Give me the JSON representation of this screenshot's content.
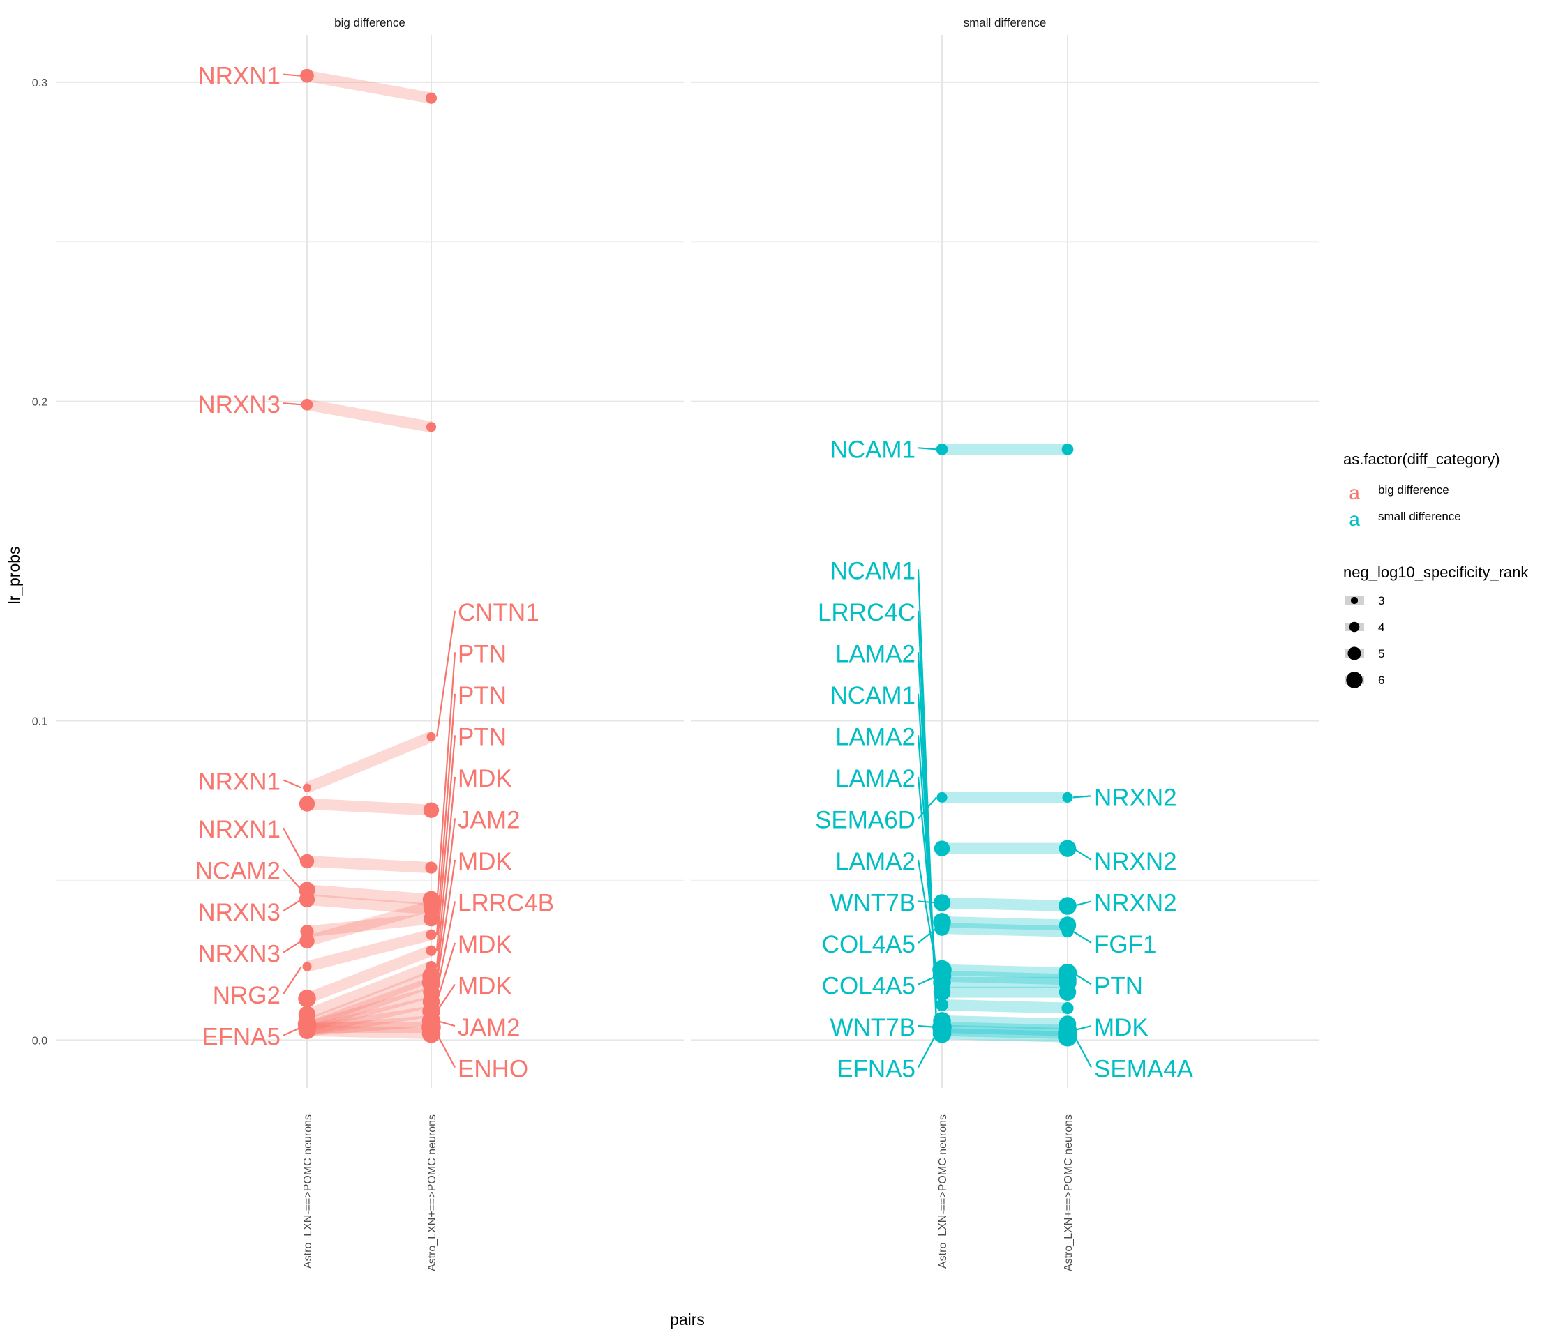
{
  "chart_data": {
    "type": "dumbbell",
    "facets": [
      "big difference",
      "small difference"
    ],
    "xlabel": "pairs",
    "ylabel": "lr_probs",
    "x_categories": [
      "Astro_LXN-==>POMC neurons",
      "Astro_LXN+==>POMC neurons"
    ],
    "yticks": [
      "0.0",
      "0.1",
      "0.2",
      "0.3"
    ],
    "ylim": [
      -0.015,
      0.317
    ],
    "grid": true,
    "legend_position": "right",
    "legend": {
      "color_title": "as.factor(diff_category)",
      "color_entries": [
        {
          "label": "big difference",
          "color": "#F8766D"
        },
        {
          "label": "small difference",
          "color": "#00BFC4"
        }
      ],
      "size_title": "neg_log10_specificity_rank",
      "size_entries": [
        "3",
        "4",
        "5",
        "6"
      ],
      "key_glyph": "a"
    },
    "series": {
      "big difference": {
        "color": "#F8766D",
        "pairs": [
          {
            "left": 0.302,
            "right": 0.295,
            "size_left": 4.5,
            "size_right": 3.8
          },
          {
            "left": 0.199,
            "right": 0.192,
            "size_left": 3.9,
            "size_right": 3.4
          },
          {
            "left": 0.079,
            "right": 0.095,
            "size_left": 3.0,
            "size_right": 3.2
          },
          {
            "left": 0.074,
            "right": 0.072,
            "size_left": 5.0,
            "size_right": 5.0
          },
          {
            "left": 0.056,
            "right": 0.054,
            "size_left": 4.6,
            "size_right": 4.0
          },
          {
            "left": 0.047,
            "right": 0.044,
            "size_left": 5.2,
            "size_right": 5.4
          },
          {
            "left": 0.044,
            "right": 0.041,
            "size_left": 5.0,
            "size_right": 4.8
          },
          {
            "left": 0.034,
            "right": 0.038,
            "size_left": 4.4,
            "size_right": 4.9
          },
          {
            "left": 0.031,
            "right": 0.042,
            "size_left": 4.8,
            "size_right": 5.0
          },
          {
            "left": 0.023,
            "right": 0.033,
            "size_left": 3.2,
            "size_right": 3.6
          },
          {
            "left": 0.013,
            "right": 0.028,
            "size_left": 5.6,
            "size_right": 3.6
          },
          {
            "left": 0.008,
            "right": 0.023,
            "size_left": 5.4,
            "size_right": 3.8
          },
          {
            "left": 0.005,
            "right": 0.02,
            "size_left": 5.8,
            "size_right": 5.6
          },
          {
            "left": 0.004,
            "right": 0.018,
            "size_left": 5.6,
            "size_right": 5.8
          },
          {
            "left": 0.004,
            "right": 0.015,
            "size_left": 5.6,
            "size_right": 5.2
          },
          {
            "left": 0.003,
            "right": 0.012,
            "size_left": 5.4,
            "size_right": 5.4
          },
          {
            "left": 0.003,
            "right": 0.009,
            "size_left": 5.4,
            "size_right": 5.6
          },
          {
            "left": 0.003,
            "right": 0.006,
            "size_left": 5.4,
            "size_right": 5.8
          },
          {
            "left": 0.004,
            "right": 0.004,
            "size_left": 5.4,
            "size_right": 6.0
          },
          {
            "left": 0.003,
            "right": 0.002,
            "size_left": 5.4,
            "size_right": 5.8
          }
        ],
        "left_labels": [
          {
            "text": "NRXN1",
            "y": 0.302,
            "label_y": 0.302
          },
          {
            "text": "NRXN3",
            "y": 0.199,
            "label_y": 0.199
          },
          {
            "text": "NRXN1",
            "y": 0.079,
            "label_y": 0.081
          },
          {
            "text": "NRXN1",
            "y": 0.056,
            "label_y": 0.066
          },
          {
            "text": "NCAM2",
            "y": 0.047,
            "label_y": 0.053
          },
          {
            "text": "NRXN3",
            "y": 0.044,
            "label_y": 0.04
          },
          {
            "text": "NRXN3",
            "y": 0.031,
            "label_y": 0.027
          },
          {
            "text": "NRG2",
            "y": 0.023,
            "label_y": 0.014
          },
          {
            "text": "EFNA5",
            "y": 0.004,
            "label_y": 0.001
          }
        ],
        "right_labels": [
          {
            "text": "CNTN1",
            "y": 0.095,
            "label_y": 0.134
          },
          {
            "text": "PTN",
            "y": 0.042,
            "label_y": 0.121
          },
          {
            "text": "PTN",
            "y": 0.033,
            "label_y": 0.108
          },
          {
            "text": "PTN",
            "y": 0.028,
            "label_y": 0.095
          },
          {
            "text": "MDK",
            "y": 0.023,
            "label_y": 0.082
          },
          {
            "text": "JAM2",
            "y": 0.02,
            "label_y": 0.069
          },
          {
            "text": "MDK",
            "y": 0.018,
            "label_y": 0.056
          },
          {
            "text": "LRRC4B",
            "y": 0.015,
            "label_y": 0.043
          },
          {
            "text": "MDK",
            "y": 0.012,
            "label_y": 0.03
          },
          {
            "text": "MDK",
            "y": 0.009,
            "label_y": 0.017
          },
          {
            "text": "JAM2",
            "y": 0.006,
            "label_y": 0.004
          },
          {
            "text": "ENHO",
            "y": 0.002,
            "label_y": -0.009
          }
        ]
      },
      "small difference": {
        "color": "#00BFC4",
        "pairs": [
          {
            "left": 0.185,
            "right": 0.185,
            "size_left": 3.9,
            "size_right": 3.9
          },
          {
            "left": 0.076,
            "right": 0.076,
            "size_left": 3.6,
            "size_right": 3.6
          },
          {
            "left": 0.06,
            "right": 0.06,
            "size_left": 5.0,
            "size_right": 5.4
          },
          {
            "left": 0.043,
            "right": 0.042,
            "size_left": 5.4,
            "size_right": 5.6
          },
          {
            "left": 0.037,
            "right": 0.036,
            "size_left": 5.6,
            "size_right": 5.4
          },
          {
            "left": 0.035,
            "right": 0.034,
            "size_left": 4.8,
            "size_right": 4.0
          },
          {
            "left": 0.022,
            "right": 0.021,
            "size_left": 6.0,
            "size_right": 5.8
          },
          {
            "left": 0.02,
            "right": 0.019,
            "size_left": 5.8,
            "size_right": 5.6
          },
          {
            "left": 0.018,
            "right": 0.018,
            "size_left": 5.6,
            "size_right": 5.6
          },
          {
            "left": 0.015,
            "right": 0.015,
            "size_left": 5.4,
            "size_right": 5.4
          },
          {
            "left": 0.011,
            "right": 0.01,
            "size_left": 4.2,
            "size_right": 4.0
          },
          {
            "left": 0.006,
            "right": 0.005,
            "size_left": 5.6,
            "size_right": 5.4
          },
          {
            "left": 0.004,
            "right": 0.003,
            "size_left": 6.0,
            "size_right": 5.8
          },
          {
            "left": 0.003,
            "right": 0.002,
            "size_left": 5.8,
            "size_right": 6.0
          },
          {
            "left": 0.002,
            "right": 0.001,
            "size_left": 5.8,
            "size_right": 6.0
          }
        ],
        "left_labels": [
          {
            "text": "NCAM1",
            "y": 0.185,
            "label_y": 0.185
          },
          {
            "text": "NCAM1",
            "y": 0.004,
            "label_y": 0.147
          },
          {
            "text": "LRRC4C",
            "y": 0.006,
            "label_y": 0.134
          },
          {
            "text": "LAMA2",
            "y": 0.011,
            "label_y": 0.121
          },
          {
            "text": "NCAM1",
            "y": 0.015,
            "label_y": 0.108
          },
          {
            "text": "LAMA2",
            "y": 0.018,
            "label_y": 0.095
          },
          {
            "text": "LAMA2",
            "y": 0.02,
            "label_y": 0.082
          },
          {
            "text": "SEMA6D",
            "y": 0.076,
            "label_y": 0.069
          },
          {
            "text": "LAMA2",
            "y": 0.022,
            "label_y": 0.056
          },
          {
            "text": "WNT7B",
            "y": 0.043,
            "label_y": 0.043
          },
          {
            "text": "COL4A5",
            "y": 0.035,
            "label_y": 0.03
          },
          {
            "text": "COL4A5",
            "y": 0.02,
            "label_y": 0.017
          },
          {
            "text": "WNT7B",
            "y": 0.004,
            "label_y": 0.004
          },
          {
            "text": "EFNA5",
            "y": 0.002,
            "label_y": -0.009
          }
        ],
        "right_labels": [
          {
            "text": "NRXN2",
            "y": 0.076,
            "label_y": 0.076
          },
          {
            "text": "NRXN2",
            "y": 0.06,
            "label_y": 0.056
          },
          {
            "text": "NRXN2",
            "y": 0.042,
            "label_y": 0.043
          },
          {
            "text": "FGF1",
            "y": 0.034,
            "label_y": 0.03
          },
          {
            "text": "PTN",
            "y": 0.021,
            "label_y": 0.017
          },
          {
            "text": "MDK",
            "y": 0.003,
            "label_y": 0.004
          },
          {
            "text": "SEMA4A",
            "y": 0.002,
            "label_y": -0.009
          }
        ]
      }
    }
  }
}
